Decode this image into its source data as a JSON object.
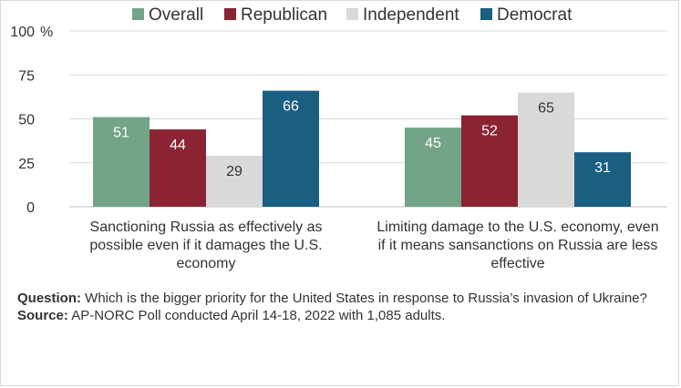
{
  "chart_data": {
    "type": "bar",
    "y_unit": "%",
    "ylim": [
      0,
      100
    ],
    "yticks": [
      0,
      25,
      50,
      75,
      100
    ],
    "grid": true,
    "legend_position": "top",
    "categories": [
      [
        "Sanctioning Russia as effectively as",
        "possible even if it damages the U.S.",
        "economy"
      ],
      [
        "Limiting damage to the U.S. economy, even",
        "if it means sansanctions on Russia are less",
        "effective"
      ]
    ],
    "series": [
      {
        "name": "Overall",
        "color": "#72a488",
        "label_color": "#ffffff",
        "values": [
          51,
          45
        ]
      },
      {
        "name": "Republican",
        "color": "#8a2433",
        "label_color": "#ffffff",
        "values": [
          44,
          52
        ]
      },
      {
        "name": "Independent",
        "color": "#d9d9d9",
        "label_color": "#333333",
        "values": [
          29,
          65
        ]
      },
      {
        "name": "Democrat",
        "color": "#1a5e80",
        "label_color": "#ffffff",
        "values": [
          66,
          31
        ]
      }
    ]
  },
  "footnote": {
    "question_label": "Question:",
    "question_text": " Which is the bigger priority for the United States in response to Russia’s invasion of Ukraine?",
    "source_label": "Source:",
    "source_text": " AP-NORC Poll conducted April 14-18, 2022 with 1,085 adults."
  }
}
